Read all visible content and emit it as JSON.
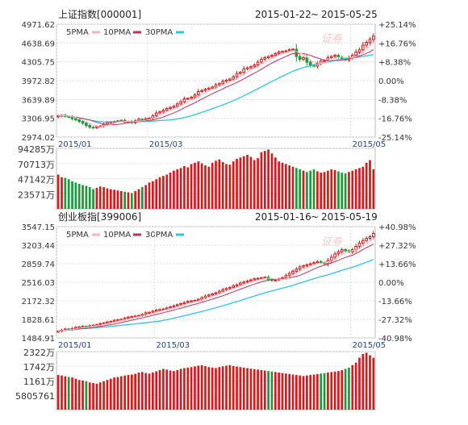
{
  "colors": {
    "up": "#d7191c",
    "down": "#1a9a3a",
    "ma5": "#f2b8b8",
    "ma10": "#c0305a",
    "ma30": "#2ec3e6",
    "grid": "#cccccc",
    "text": "#333333"
  },
  "legend_labels": [
    "5PMA",
    "10PMA",
    "30PMA"
  ],
  "watermark": "证券",
  "panels": [
    {
      "name": "上证指数[000001]",
      "range_start": "2015-01-22",
      "range_tilde": "~",
      "range_end": "2015-05-25",
      "y_ticks": [
        "4971.62",
        "4638.69",
        "4305.75",
        "3972.82",
        "3639.89",
        "3306.95",
        "2974.02"
      ],
      "pct_ticks": [
        "+25.14%",
        "+16.76%",
        "+8.38%",
        "0.00%",
        "-8.38%",
        "-16.76%",
        "-25.14%"
      ],
      "ylim": [
        2974.02,
        4971.62
      ],
      "x_ticks": [
        {
          "label": "2015/01",
          "index": 0
        },
        {
          "label": "2015/03",
          "index": 26
        },
        {
          "label": "2015/05",
          "index": 84
        }
      ],
      "vol_ticks": [
        "94285万",
        "70713万",
        "47142万",
        "23571万"
      ],
      "vol_max": 94285,
      "chart_data": {
        "type": "candlestick",
        "closes": [
          3350,
          3360,
          3340,
          3330,
          3300,
          3280,
          3250,
          3220,
          3180,
          3150,
          3140,
          3160,
          3170,
          3200,
          3230,
          3240,
          3250,
          3260,
          3270,
          3240,
          3250,
          3230,
          3260,
          3290,
          3280,
          3300,
          3310,
          3350,
          3400,
          3420,
          3450,
          3480,
          3500,
          3520,
          3560,
          3600,
          3650,
          3660,
          3680,
          3720,
          3780,
          3800,
          3820,
          3840,
          3860,
          3900,
          3920,
          3960,
          3980,
          4000,
          4040,
          4100,
          4120,
          4180,
          4200,
          4220,
          4250,
          4300,
          4350,
          4380,
          4400,
          4420,
          4450,
          4480,
          4490,
          4500,
          4520,
          4530,
          4400,
          4350,
          4380,
          4300,
          4250,
          4230,
          4280,
          4320,
          4330,
          4380,
          4400,
          4420,
          4390,
          4360,
          4340,
          4380,
          4420,
          4480,
          4520,
          4600,
          4650,
          4700,
          4760
        ],
        "volumes": [
          52000,
          48000,
          47000,
          45000,
          42000,
          40000,
          38000,
          36000,
          35000,
          33000,
          30000,
          32000,
          34000,
          33000,
          31000,
          30000,
          29000,
          28000,
          27000,
          26000,
          25000,
          24000,
          27000,
          30000,
          33000,
          36000,
          40000,
          42000,
          45000,
          48000,
          50000,
          52000,
          55000,
          58000,
          60000,
          62000,
          65000,
          63000,
          68000,
          70000,
          72000,
          69000,
          66000,
          64000,
          70000,
          73000,
          75000,
          71000,
          68000,
          67000,
          72000,
          76000,
          78000,
          80000,
          82000,
          79000,
          74000,
          77000,
          86000,
          88000,
          90000,
          84000,
          78000,
          72000,
          70000,
          68000,
          66000,
          64000,
          62000,
          60000,
          58000,
          56000,
          58000,
          60000,
          57000,
          55000,
          56000,
          58000,
          60000,
          59000,
          57000,
          55000,
          54000,
          56000,
          58000,
          60000,
          62000,
          64000,
          70000,
          74000,
          60000
        ],
        "trend_marks": {
          "ma5_offset": 0,
          "ma10_period": 10,
          "ma30_period": 30
        }
      }
    },
    {
      "name": "创业板指[399006]",
      "range_start": "2015-01-16",
      "range_tilde": "~",
      "range_end": "2015-05-19",
      "y_ticks": [
        "3547.15",
        "3203.44",
        "2859.74",
        "2516.03",
        "2172.32",
        "1828.61",
        "1484.91"
      ],
      "pct_ticks": [
        "+40.98%",
        "+27.32%",
        "+13.66%",
        "0.00%",
        "-13.66%",
        "-27.32%",
        "-40.98%"
      ],
      "ylim": [
        1484.91,
        3547.15
      ],
      "x_ticks": [
        {
          "label": "2015/01",
          "index": 0
        },
        {
          "label": "2015/03",
          "index": 28
        },
        {
          "label": "2015/05",
          "index": 84
        }
      ],
      "vol_ticks": [
        "2322万",
        "1742万",
        "1161万",
        "5805761"
      ],
      "vol_max": 2322,
      "chart_data": {
        "type": "candlestick",
        "closes": [
          1610,
          1630,
          1650,
          1640,
          1660,
          1680,
          1690,
          1700,
          1690,
          1710,
          1720,
          1730,
          1750,
          1760,
          1780,
          1790,
          1810,
          1820,
          1830,
          1850,
          1870,
          1880,
          1890,
          1900,
          1920,
          1950,
          1960,
          1980,
          2000,
          2010,
          2020,
          2040,
          2060,
          2080,
          2100,
          2120,
          2140,
          2160,
          2170,
          2180,
          2200,
          2230,
          2260,
          2280,
          2300,
          2320,
          2350,
          2380,
          2400,
          2420,
          2450,
          2470,
          2500,
          2520,
          2540,
          2560,
          2580,
          2590,
          2600,
          2610,
          2570,
          2550,
          2560,
          2580,
          2600,
          2640,
          2680,
          2720,
          2760,
          2800,
          2820,
          2840,
          2860,
          2880,
          2900,
          2880,
          2860,
          2920,
          2980,
          3040,
          3080,
          3120,
          3100,
          3080,
          3120,
          3180,
          3240,
          3290,
          3330,
          3360,
          3420
        ],
        "volumes": [
          1400,
          1380,
          1350,
          1320,
          1300,
          1250,
          1200,
          1180,
          1150,
          1100,
          1080,
          1050,
          1100,
          1150,
          1200,
          1250,
          1300,
          1320,
          1350,
          1380,
          1400,
          1420,
          1450,
          1500,
          1520,
          1480,
          1460,
          1500,
          1550,
          1600,
          1650,
          1620,
          1580,
          1560,
          1600,
          1650,
          1680,
          1700,
          1720,
          1750,
          1780,
          1800,
          1760,
          1720,
          1700,
          1680,
          1720,
          1750,
          1780,
          1800,
          1760,
          1740,
          1720,
          1700,
          1680,
          1660,
          1640,
          1620,
          1600,
          1580,
          1560,
          1540,
          1520,
          1500,
          1480,
          1460,
          1440,
          1420,
          1400,
          1380,
          1360,
          1380,
          1400,
          1420,
          1440,
          1460,
          1480,
          1500,
          1520,
          1540,
          1560,
          1600,
          1650,
          1700,
          1800,
          1900,
          2100,
          2250,
          2300,
          2200,
          2100
        ]
      }
    }
  ]
}
